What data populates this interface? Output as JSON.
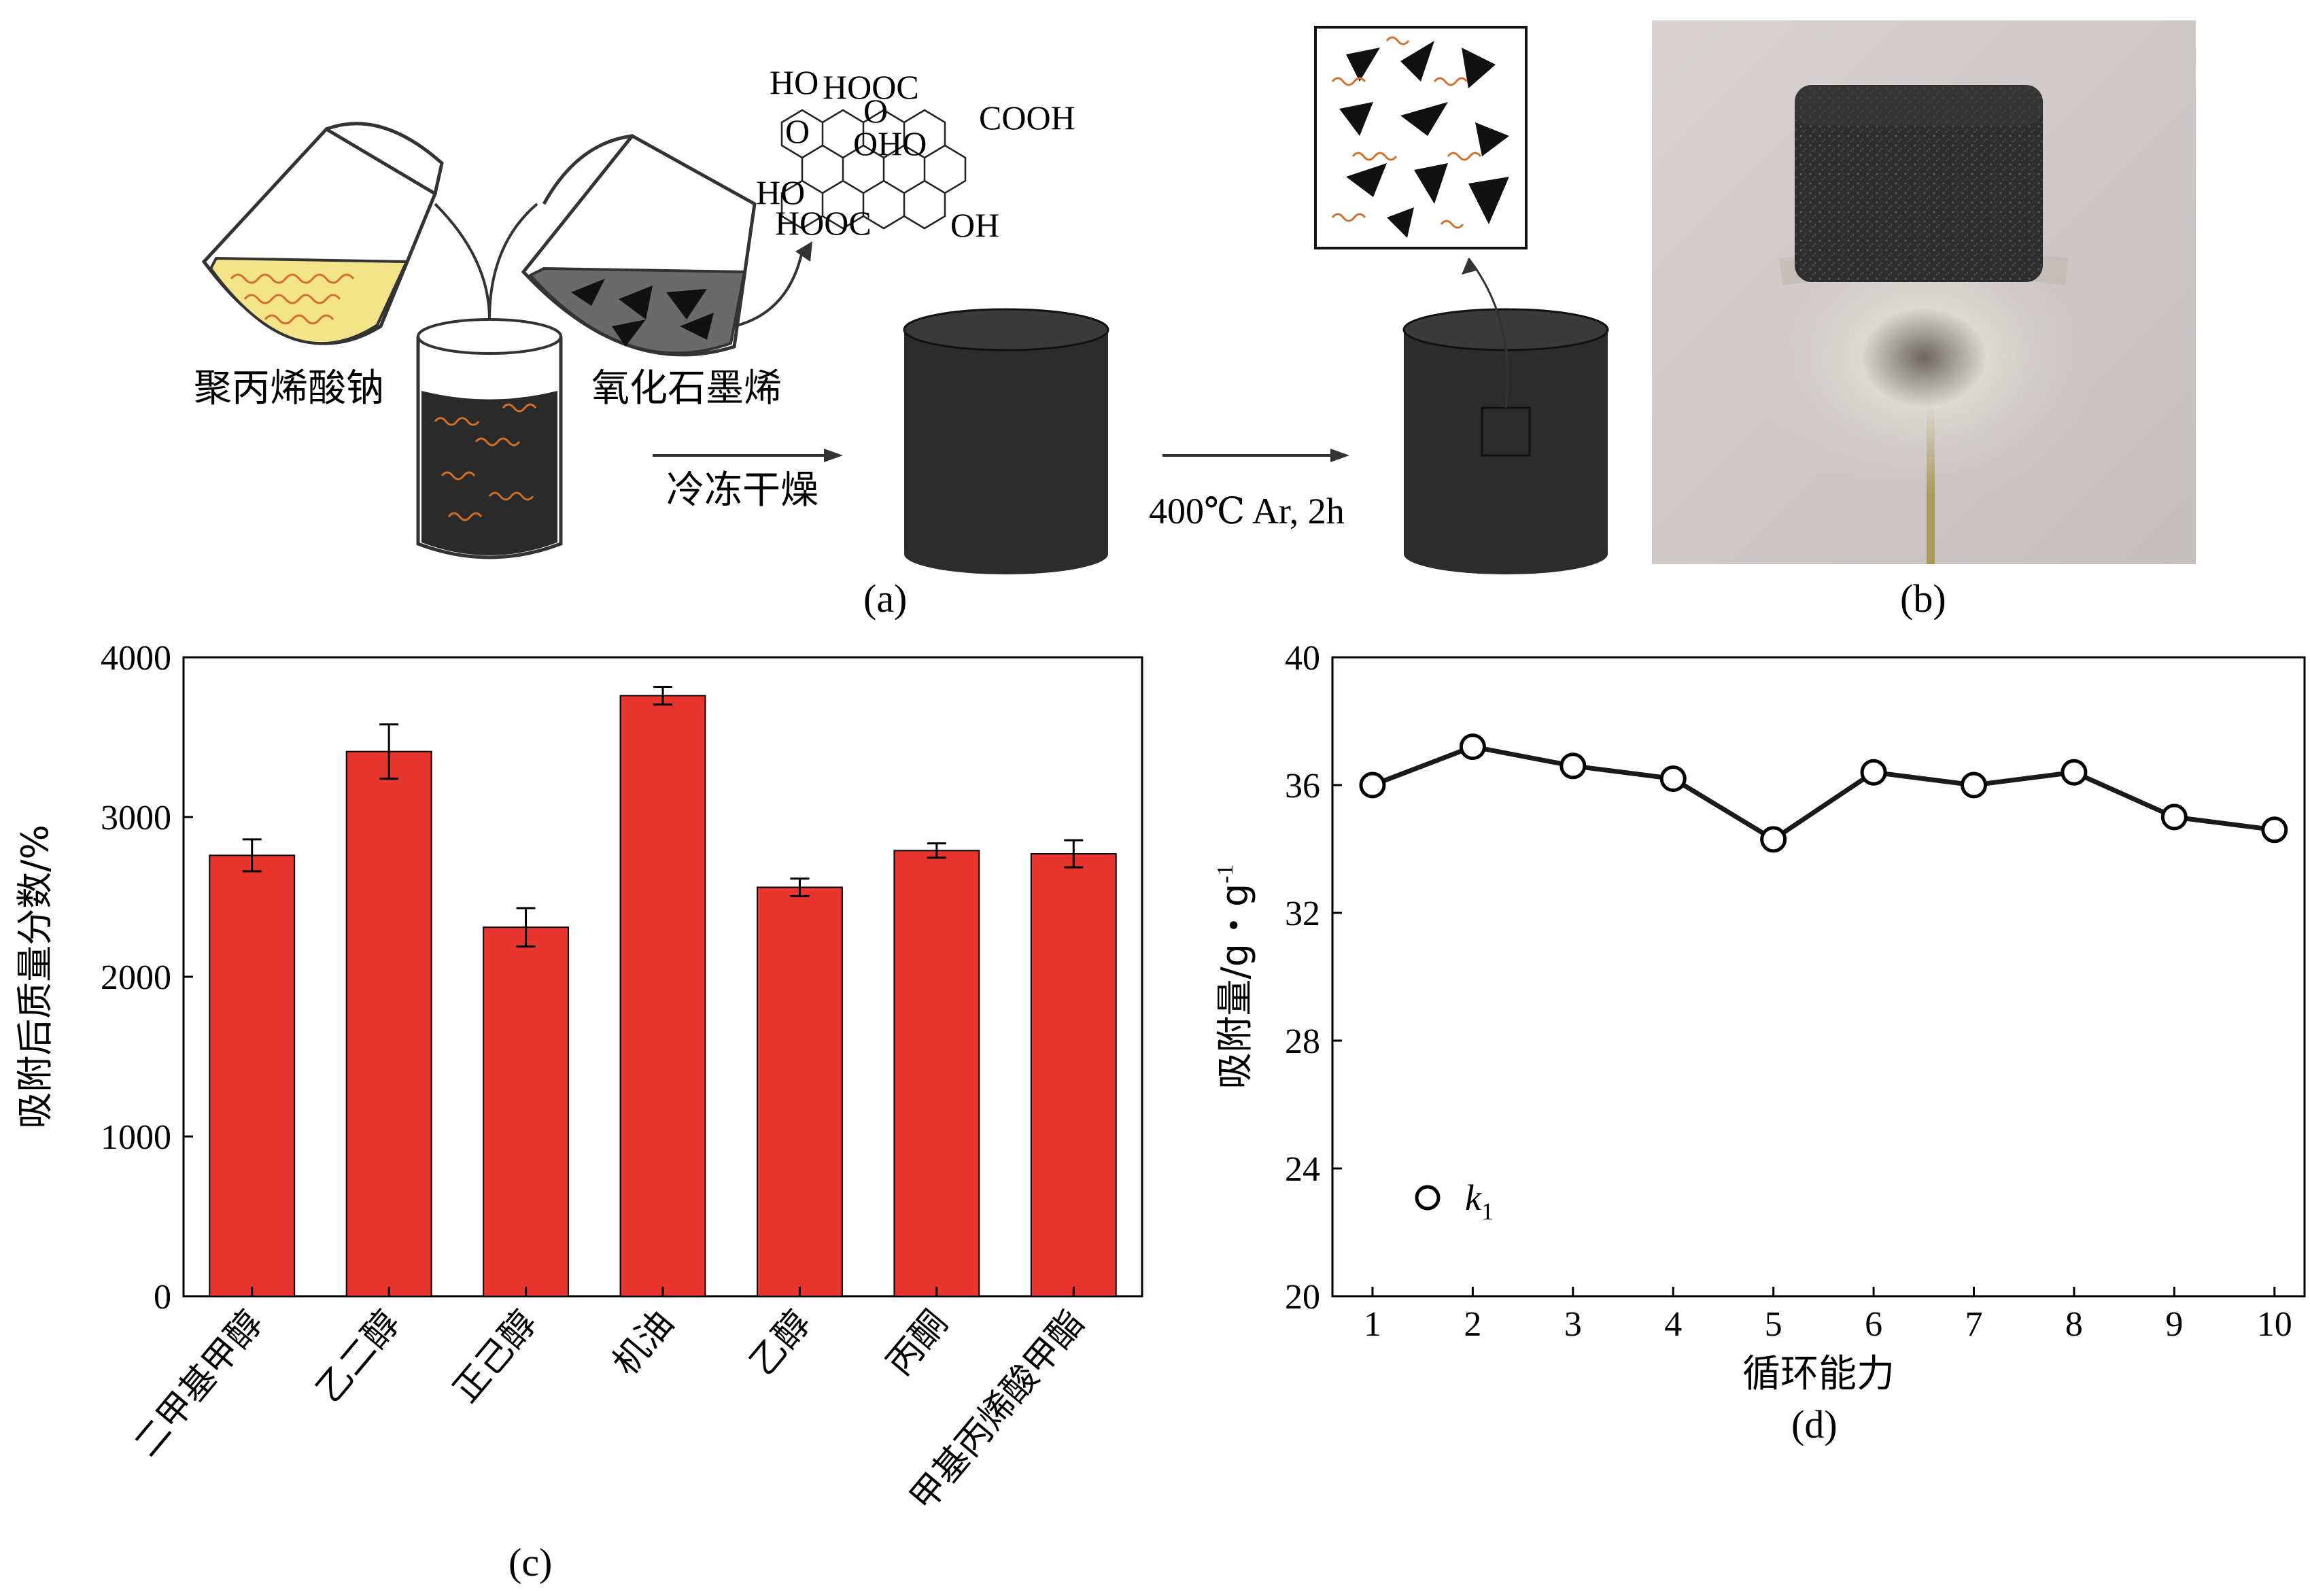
{
  "panel_a": {
    "label_pours_left": "聚丙烯酸钠",
    "label_pours_right": "氧化石墨烯",
    "step1": "冷冻干燥",
    "step2": "400℃ Ar, 2h",
    "caption": "(a)",
    "go_chem": {
      "groups": [
        "HO",
        "HOOC",
        "O",
        "COOH",
        "O",
        "OHO",
        "HO",
        "HOOC",
        "OH"
      ]
    },
    "colors": {
      "solution_yellow": "#f3e48a",
      "aerogel": "#2c2c2c",
      "chain_orange": "#d2702a"
    }
  },
  "panel_b": {
    "caption": "(b)",
    "photo_bg": "#cfc9c7"
  },
  "chart_data": [
    {
      "panel": "c",
      "type": "bar",
      "ylabel": "吸附后质量分数/%",
      "ylim": [
        0,
        4000
      ],
      "yticks": [
        0,
        1000,
        2000,
        3000,
        4000
      ],
      "categories": [
        "二甲基甲醇",
        "乙二醇",
        "正己醇",
        "机油",
        "乙醇",
        "丙酮",
        "甲基丙烯酸甲酯"
      ],
      "values": [
        2760,
        3410,
        2310,
        3760,
        2560,
        2790,
        2770
      ],
      "errors": [
        100,
        170,
        120,
        55,
        55,
        45,
        85
      ],
      "bar_color": "#e8352d",
      "caption": "(c)"
    },
    {
      "panel": "d",
      "type": "line",
      "xlabel": "循环能力",
      "ylabel": "吸附量/g・g",
      "ylabel_sup": "-1",
      "xlim": [
        0.6,
        10.3
      ],
      "ylim": [
        20,
        40
      ],
      "xticks": [
        1,
        2,
        3,
        4,
        5,
        6,
        7,
        8,
        9,
        10
      ],
      "yticks": [
        20,
        24,
        28,
        32,
        36,
        40
      ],
      "series": [
        {
          "name": "k",
          "name_sub": "1",
          "x": [
            1,
            2,
            3,
            4,
            5,
            6,
            7,
            8,
            9,
            10
          ],
          "y": [
            36.0,
            37.2,
            36.6,
            36.2,
            34.3,
            36.4,
            36.0,
            36.4,
            35.0,
            34.6
          ]
        }
      ],
      "legend_position": "bottom-left",
      "caption": "(d)"
    }
  ]
}
